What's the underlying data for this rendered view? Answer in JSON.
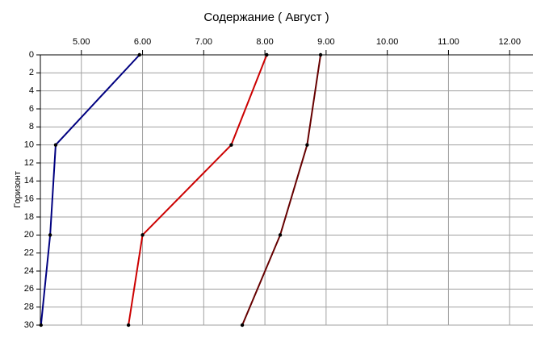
{
  "chart_data": {
    "type": "line",
    "title": "Содержание    ( Август )",
    "y_label": "Горизонт",
    "y": [
      0,
      10,
      20,
      30
    ],
    "series": [
      {
        "color": "#000080",
        "values": [
          5.95,
          4.58,
          4.49,
          4.34
        ]
      },
      {
        "color": "#cc0000",
        "values": [
          8.03,
          7.45,
          6.0,
          5.77
        ]
      },
      {
        "color": "#660000",
        "values": [
          8.91,
          8.69,
          8.25,
          7.63
        ]
      }
    ],
    "xlim": [
      4.33,
      12.38
    ],
    "xticks": [
      {
        "value": 5,
        "label": "5.00"
      },
      {
        "value": 6,
        "label": "6.00"
      },
      {
        "value": 7,
        "label": "7.00"
      },
      {
        "value": 8,
        "label": "8.00"
      },
      {
        "value": 9,
        "label": "9.00"
      },
      {
        "value": 10,
        "label": "10.00"
      },
      {
        "value": 11,
        "label": "11.00"
      },
      {
        "value": 12,
        "label": "12.00"
      }
    ],
    "ylim": [
      0,
      30
    ],
    "yticks": [
      0,
      2,
      4,
      6,
      8,
      10,
      12,
      14,
      16,
      18,
      20,
      22,
      24,
      26,
      28,
      30
    ],
    "y_inverted": true,
    "grid": true
  }
}
